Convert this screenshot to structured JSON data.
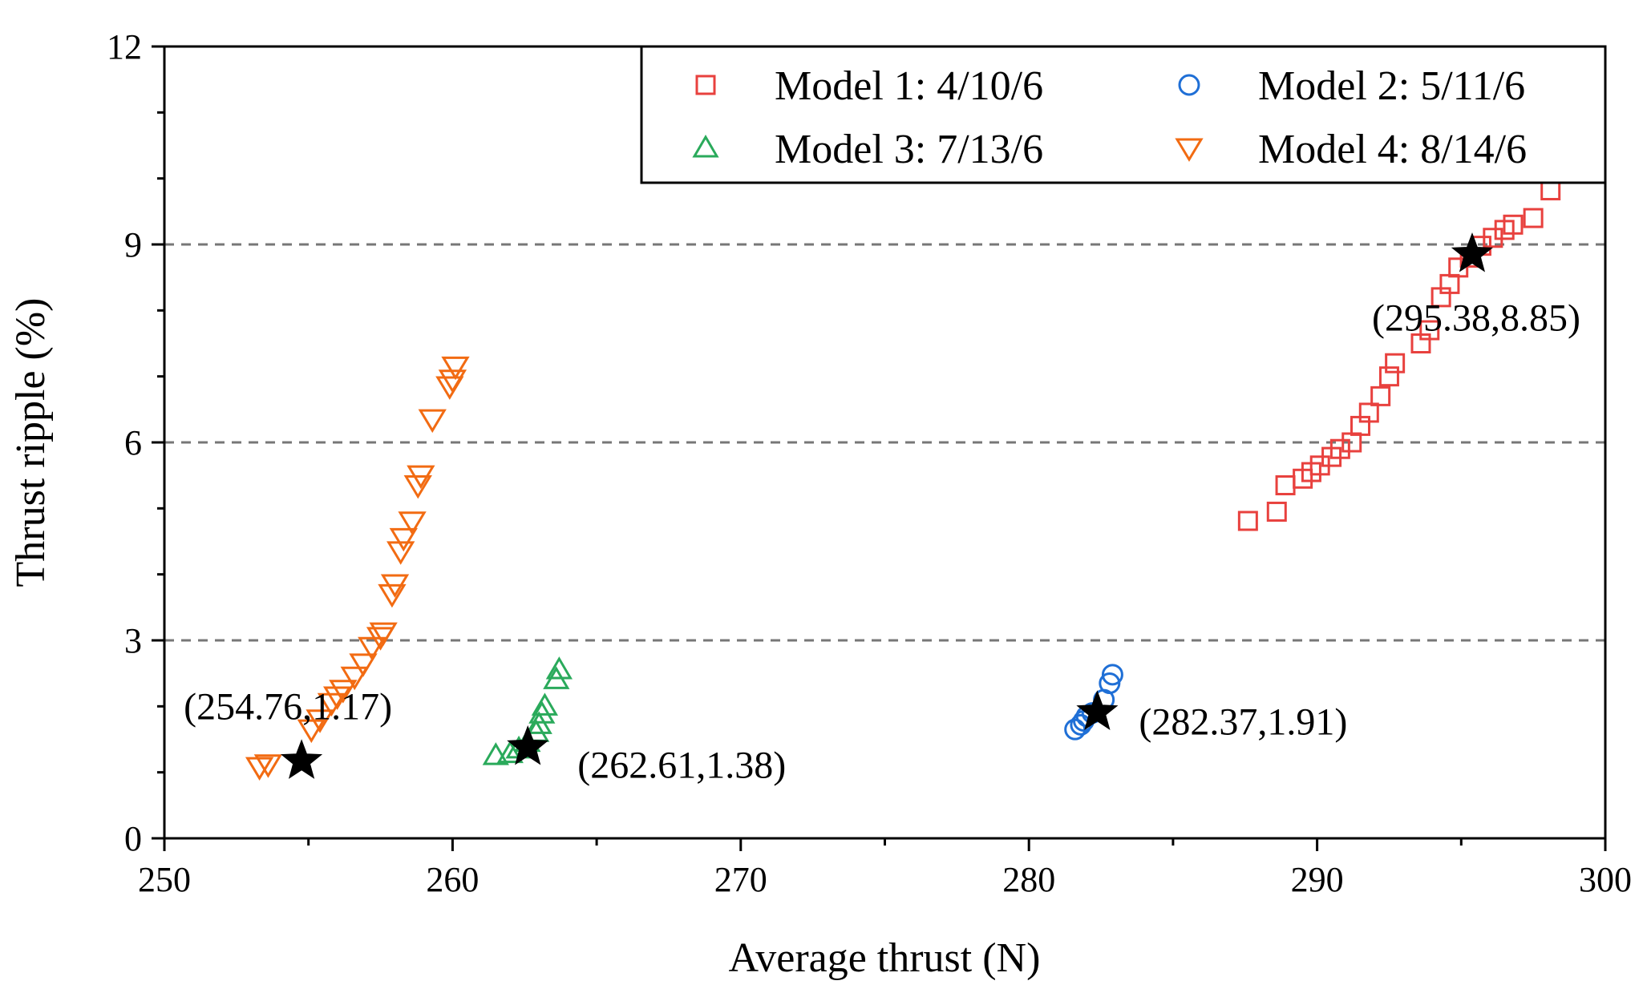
{
  "chart_data": {
    "type": "scatter",
    "title": "",
    "xlabel": "Average thrust (N)",
    "ylabel": "Thrust ripple (%)",
    "xlim": [
      250,
      300
    ],
    "ylim": [
      0,
      12
    ],
    "xticks": [
      250,
      260,
      270,
      280,
      290,
      300
    ],
    "yticks": [
      0,
      3,
      6,
      9,
      12
    ],
    "xtick_labels": [
      "250",
      "260",
      "270",
      "280",
      "290",
      "300"
    ],
    "ytick_labels": [
      "0",
      "3",
      "6",
      "9",
      "12"
    ],
    "grid": "horizontal dashed at y = 3, 6, 9",
    "legend_position": "top-right",
    "series": [
      {
        "name": "Model 1: 4/10/6",
        "marker": "square",
        "color": "#e8413e",
        "points": [
          [
            287.6,
            4.81
          ],
          [
            288.6,
            4.95
          ],
          [
            288.9,
            5.35
          ],
          [
            289.5,
            5.45
          ],
          [
            289.8,
            5.55
          ],
          [
            290.1,
            5.65
          ],
          [
            290.5,
            5.78
          ],
          [
            290.8,
            5.9
          ],
          [
            291.2,
            6.0
          ],
          [
            291.5,
            6.25
          ],
          [
            291.8,
            6.45
          ],
          [
            292.2,
            6.7
          ],
          [
            292.5,
            7.0
          ],
          [
            292.7,
            7.2
          ],
          [
            293.6,
            7.5
          ],
          [
            293.9,
            7.7
          ],
          [
            294.3,
            8.2
          ],
          [
            294.6,
            8.4
          ],
          [
            294.9,
            8.65
          ],
          [
            295.3,
            8.8
          ],
          [
            295.7,
            8.98
          ],
          [
            296.1,
            9.1
          ],
          [
            296.5,
            9.22
          ],
          [
            296.8,
            9.3
          ],
          [
            297.5,
            9.4
          ],
          [
            298.1,
            9.82
          ]
        ]
      },
      {
        "name": "Model 2: 5/11/6",
        "marker": "circle",
        "color": "#1f6fd6",
        "points": [
          [
            281.6,
            1.65
          ],
          [
            281.8,
            1.72
          ],
          [
            281.9,
            1.78
          ],
          [
            282.0,
            1.85
          ],
          [
            282.2,
            1.9
          ],
          [
            282.6,
            2.1
          ],
          [
            282.8,
            2.35
          ],
          [
            282.9,
            2.48
          ]
        ]
      },
      {
        "name": "Model 3: 7/13/6",
        "marker": "triangle-up",
        "color": "#2aaa5b",
        "points": [
          [
            261.5,
            1.25
          ],
          [
            262.0,
            1.28
          ],
          [
            262.3,
            1.35
          ],
          [
            262.6,
            1.45
          ],
          [
            262.9,
            1.6
          ],
          [
            263.0,
            1.72
          ],
          [
            263.1,
            1.88
          ],
          [
            263.2,
            2.0
          ],
          [
            263.6,
            2.4
          ],
          [
            263.7,
            2.55
          ]
        ]
      },
      {
        "name": "Model 4: 8/14/6",
        "marker": "triangle-down",
        "color": "#f26b12",
        "points": [
          [
            253.3,
            1.08
          ],
          [
            253.6,
            1.12
          ],
          [
            255.1,
            1.65
          ],
          [
            255.4,
            1.8
          ],
          [
            255.8,
            2.05
          ],
          [
            256.0,
            2.15
          ],
          [
            256.2,
            2.25
          ],
          [
            256.6,
            2.45
          ],
          [
            256.9,
            2.65
          ],
          [
            257.2,
            2.9
          ],
          [
            257.5,
            3.05
          ],
          [
            257.6,
            3.12
          ],
          [
            257.9,
            3.7
          ],
          [
            258.0,
            3.85
          ],
          [
            258.2,
            4.35
          ],
          [
            258.3,
            4.55
          ],
          [
            258.6,
            4.8
          ],
          [
            258.8,
            5.35
          ],
          [
            258.9,
            5.5
          ],
          [
            259.3,
            6.35
          ],
          [
            259.9,
            6.85
          ],
          [
            260.0,
            6.95
          ],
          [
            260.1,
            7.15
          ]
        ]
      }
    ],
    "highlights": [
      {
        "x": 295.38,
        "y": 8.85,
        "label": "(295.38,8.85)",
        "label_pos": "below"
      },
      {
        "x": 282.37,
        "y": 1.91,
        "label": "(282.37,1.91)",
        "label_pos": "right"
      },
      {
        "x": 262.61,
        "y": 1.38,
        "label": "(262.61,1.38)",
        "label_pos": "right-below"
      },
      {
        "x": 254.76,
        "y": 1.17,
        "label": "(254.76,1.17)",
        "label_pos": "above"
      }
    ],
    "legend_entries": [
      "Model 1: 4/10/6",
      "Model 2: 5/11/6",
      "Model 3: 7/13/6",
      "Model 4: 8/14/6"
    ]
  }
}
